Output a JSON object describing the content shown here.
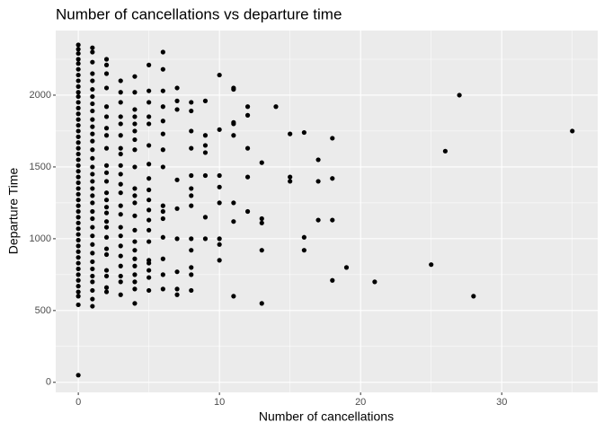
{
  "chart_data": {
    "type": "scatter",
    "title": "Number of cancellations vs departure time",
    "x_label": "Number of cancellations",
    "y_label": "Departure Time",
    "xlim": [
      -1.6,
      36.8
    ],
    "ylim": [
      -70,
      2450
    ],
    "xticks": [
      0,
      10,
      20,
      30
    ],
    "yticks": [
      0,
      500,
      1000,
      1500,
      2000
    ],
    "grid": true,
    "color": "#000000",
    "x": [
      35,
      27,
      26,
      28,
      25,
      21,
      19,
      18,
      18,
      18,
      18,
      17,
      17,
      17,
      16,
      16,
      16,
      15,
      15,
      15,
      14,
      13,
      13,
      13,
      13,
      13,
      12,
      12,
      12,
      12,
      12,
      11,
      11,
      11,
      11,
      11,
      11,
      11,
      11,
      10,
      10,
      10,
      10,
      10,
      10,
      10,
      10,
      9,
      9,
      9,
      9,
      9,
      9,
      9,
      8,
      8,
      8,
      8,
      8,
      8,
      8,
      8,
      8,
      8,
      8,
      8,
      8,
      7,
      7,
      7,
      7,
      7,
      7,
      7,
      7,
      7,
      6,
      6,
      6,
      6,
      6,
      6,
      6,
      6,
      6,
      6,
      6,
      6,
      6,
      6,
      6,
      5,
      5,
      5,
      5,
      5,
      5,
      5,
      5,
      5,
      5,
      5,
      5,
      5,
      5,
      5,
      5,
      5,
      5,
      5,
      4,
      4,
      4,
      4,
      4,
      4,
      4,
      4,
      4,
      4,
      4,
      4,
      4,
      4,
      4,
      4,
      4,
      4,
      4,
      4,
      4,
      4,
      3,
      3,
      3,
      3,
      3,
      3,
      3,
      3,
      3,
      3,
      3,
      3,
      3,
      3,
      3,
      3,
      3,
      3,
      3,
      3,
      3,
      3,
      2,
      2,
      2,
      2,
      2,
      2,
      2,
      2,
      2,
      2,
      2,
      2,
      2,
      2,
      2,
      2,
      2,
      2,
      2,
      2,
      2,
      2,
      2,
      2,
      2,
      1,
      1,
      1,
      1,
      1,
      1,
      1,
      1,
      1,
      1,
      1,
      1,
      1,
      1,
      1,
      1,
      1,
      1,
      1,
      1,
      1,
      1,
      1,
      1,
      1,
      1,
      1,
      1,
      1,
      1,
      1,
      1,
      1,
      1,
      0,
      0,
      0,
      0,
      0,
      0,
      0,
      0,
      0,
      0,
      0,
      0,
      0,
      0,
      0,
      0,
      0,
      0,
      0,
      0,
      0,
      0,
      0,
      0,
      0,
      0,
      0,
      0,
      0,
      0,
      0,
      0,
      0,
      0,
      0,
      0,
      0,
      0,
      0,
      0,
      0,
      0,
      0,
      0,
      0,
      0,
      0,
      0
    ],
    "values": [
      1750,
      2000,
      1610,
      600,
      820,
      700,
      800,
      710,
      1700,
      1420,
      1130,
      1550,
      1400,
      1130,
      1740,
      1010,
      920,
      1730,
      1430,
      1400,
      1920,
      1530,
      1140,
      1110,
      920,
      550,
      1920,
      1860,
      1630,
      1430,
      1190,
      2050,
      2040,
      1810,
      1800,
      1720,
      1250,
      1120,
      600,
      2140,
      1760,
      1440,
      1360,
      1250,
      1000,
      960,
      850,
      1960,
      1720,
      1650,
      1600,
      1440,
      1150,
      1000,
      1950,
      1890,
      1750,
      1630,
      1440,
      1350,
      1300,
      1230,
      1000,
      920,
      800,
      750,
      640,
      2050,
      1960,
      1900,
      1410,
      1210,
      1000,
      770,
      650,
      610,
      2300,
      2180,
      2030,
      1920,
      1820,
      1730,
      1620,
      1500,
      1230,
      1190,
      1140,
      1010,
      860,
      750,
      650,
      2210,
      2030,
      1950,
      1850,
      1800,
      1650,
      1520,
      1420,
      1340,
      1270,
      1200,
      1130,
      1060,
      980,
      850,
      830,
      780,
      730,
      640,
      2130,
      2020,
      1900,
      1850,
      1800,
      1750,
      1690,
      1620,
      1500,
      1350,
      1300,
      1250,
      1160,
      1060,
      980,
      920,
      860,
      810,
      750,
      700,
      650,
      550,
      2100,
      2020,
      1950,
      1850,
      1800,
      1720,
      1630,
      1590,
      1510,
      1450,
      1380,
      1320,
      1230,
      1170,
      1080,
      1020,
      950,
      880,
      810,
      740,
      700,
      610,
      2250,
      2210,
      2150,
      2050,
      1920,
      1850,
      1770,
      1720,
      1630,
      1510,
      1460,
      1400,
      1320,
      1270,
      1220,
      1180,
      1120,
      1080,
      1010,
      930,
      890,
      780,
      740,
      660,
      630,
      2330,
      2300,
      2230,
      2150,
      2100,
      2040,
      1990,
      1940,
      1890,
      1830,
      1780,
      1730,
      1680,
      1620,
      1560,
      1500,
      1450,
      1400,
      1350,
      1300,
      1250,
      1190,
      1140,
      1080,
      1020,
      960,
      900,
      840,
      790,
      740,
      700,
      640,
      580,
      530,
      2350,
      2320,
      2290,
      2250,
      2220,
      2180,
      2140,
      2100,
      2060,
      2020,
      1990,
      1950,
      1910,
      1870,
      1830,
      1790,
      1750,
      1710,
      1670,
      1630,
      1590,
      1550,
      1510,
      1470,
      1430,
      1390,
      1350,
      1310,
      1270,
      1230,
      1190,
      1150,
      1110,
      1070,
      1030,
      990,
      950,
      910,
      870,
      830,
      790,
      750,
      710,
      670,
      630,
      600,
      540,
      50
    ]
  }
}
